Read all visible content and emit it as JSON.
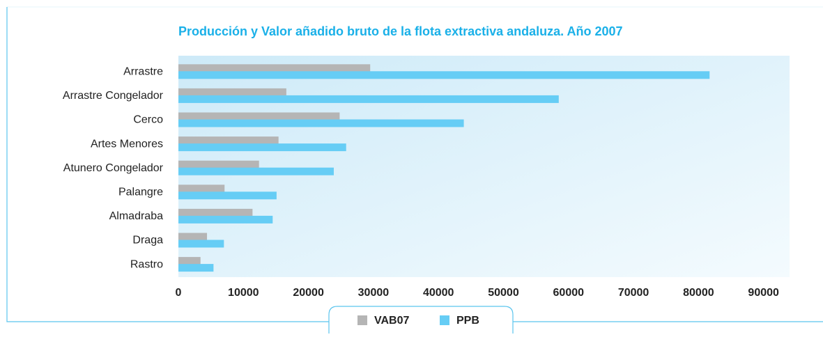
{
  "chart_data": {
    "type": "hbar",
    "title": "Producción y Valor añadido bruto de la flota extractiva andaluza. Año 2007",
    "categories": [
      "Arrastre",
      "Arrastre Congelador",
      "Cerco",
      "Artes Menores",
      "Atunero Congelador",
      "Palangre",
      "Almadraba",
      "Draga",
      "Rastro"
    ],
    "series": [
      {
        "name": "VAB07",
        "color": "#b5b5b5",
        "values": [
          29500,
          16600,
          24800,
          15400,
          12400,
          7100,
          11400,
          4400,
          3400
        ]
      },
      {
        "name": "PPB",
        "color": "#66cdf5",
        "values": [
          81700,
          58500,
          43900,
          25800,
          23900,
          15100,
          14500,
          7000,
          5400
        ]
      }
    ],
    "xlim": [
      0,
      94000
    ],
    "xticks": [
      0,
      10000,
      20000,
      30000,
      40000,
      50000,
      60000,
      70000,
      80000,
      90000
    ]
  }
}
